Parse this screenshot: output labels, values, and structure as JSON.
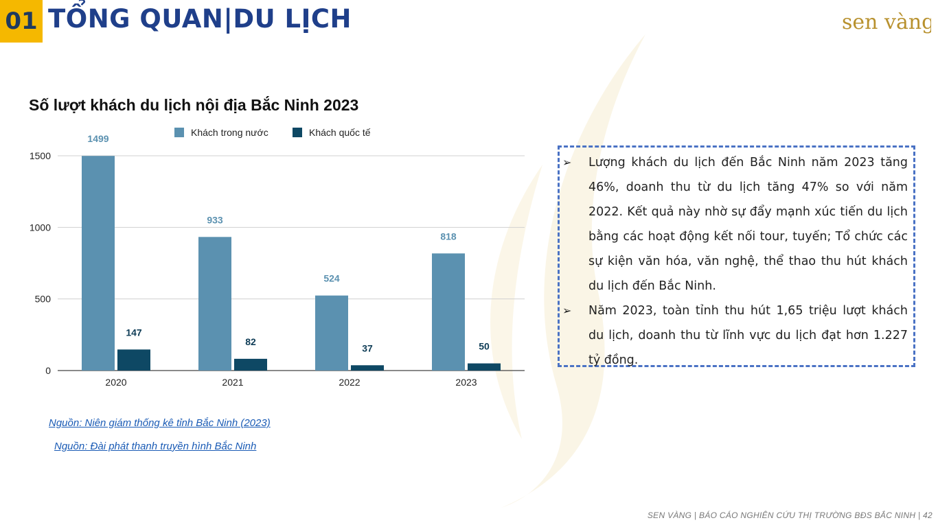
{
  "header": {
    "section_number": "01",
    "section_title": "TỔNG QUAN|DU LỊCH",
    "logo_text": "sen vàng"
  },
  "chart_data": {
    "type": "bar",
    "title": "Số lượt khách du lịch nội địa Bắc Ninh 2023",
    "categories": [
      "2020",
      "2021",
      "2022",
      "2023"
    ],
    "series": [
      {
        "name": "Khách trong nước",
        "values": [
          1499,
          933,
          524,
          818
        ],
        "color": "#5b91b0"
      },
      {
        "name": "Khách quốc tế",
        "values": [
          147,
          82,
          37,
          50
        ],
        "color": "#0e4864"
      }
    ],
    "y_ticks": [
      0,
      500,
      1000,
      1500
    ],
    "ylim": [
      0,
      1500
    ],
    "grid": true,
    "legend": "top"
  },
  "sources": [
    "Nguồn: Niên giám thống kê tỉnh Bắc Ninh (2023)",
    "Nguồn: Đài phát thanh truyền hình Bắc Ninh"
  ],
  "info_box": {
    "bullets": [
      "Lượng khách du lịch đến Bắc Ninh năm 2023 tăng 46%, doanh thu từ du lịch tăng 47% so với năm 2022. Kết quả này nhờ sự đẩy mạnh xúc tiến du lịch bằng các hoạt động kết nối tour, tuyến; Tổ chức các sự kiện văn hóa, văn nghệ, thể thao thu hút khách du lịch đến Bắc Ninh.",
      "Năm 2023, toàn tỉnh thu hút 1,65 triệu lượt khách du lịch, doanh thu từ lĩnh vực du lịch đạt hơn 1.227 tỷ đồng."
    ]
  },
  "footer": {
    "text": "SEN VÀNG | BÁO CÁO NGHIÊN CỨU THỊ TRƯỜNG BĐS BẮC NINH | 42"
  }
}
